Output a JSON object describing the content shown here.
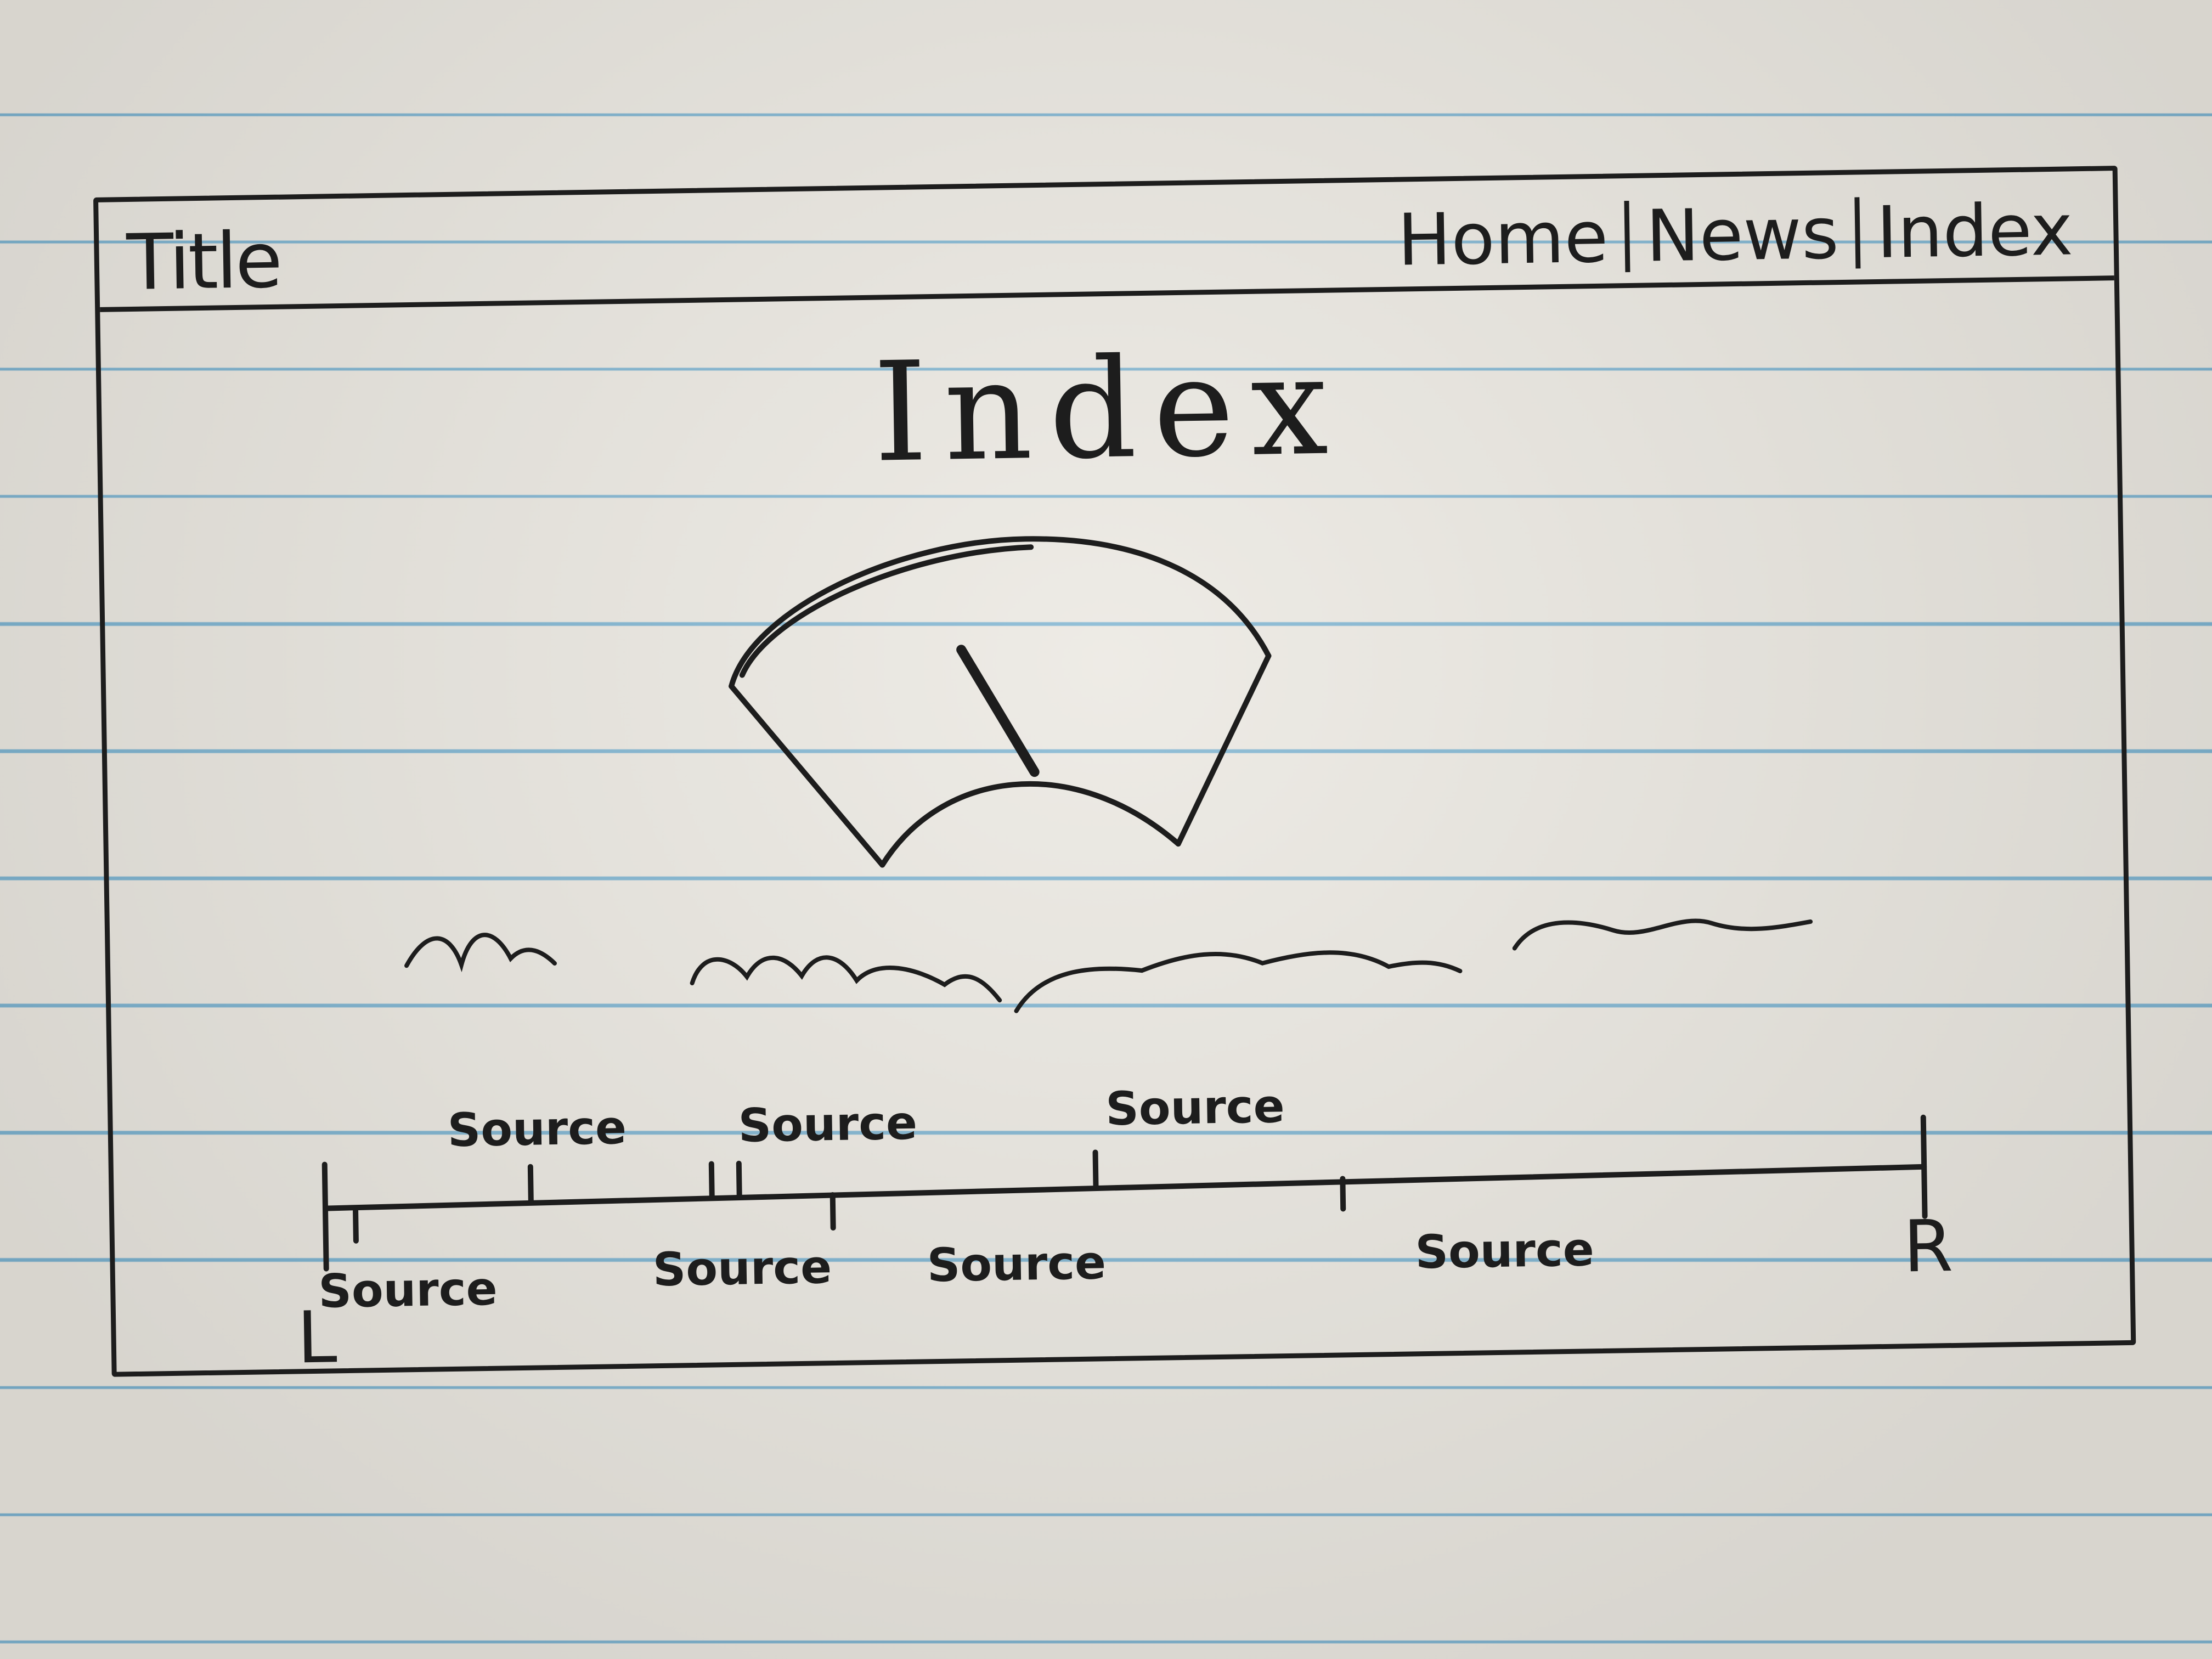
{
  "header": {
    "title": "Title",
    "nav": [
      "Home",
      "News",
      "Index"
    ]
  },
  "main": {
    "heading": "Index"
  },
  "timeline": {
    "left_label": "L",
    "right_label": "R",
    "sources_above": [
      "Source",
      "Source",
      "Source"
    ],
    "sources_below": [
      "Source",
      "Source",
      "Source",
      "Source"
    ]
  },
  "colors": {
    "ink": "#1d1d1d",
    "paper": "#eae7e0",
    "rule_line": "#7cb2cf"
  }
}
